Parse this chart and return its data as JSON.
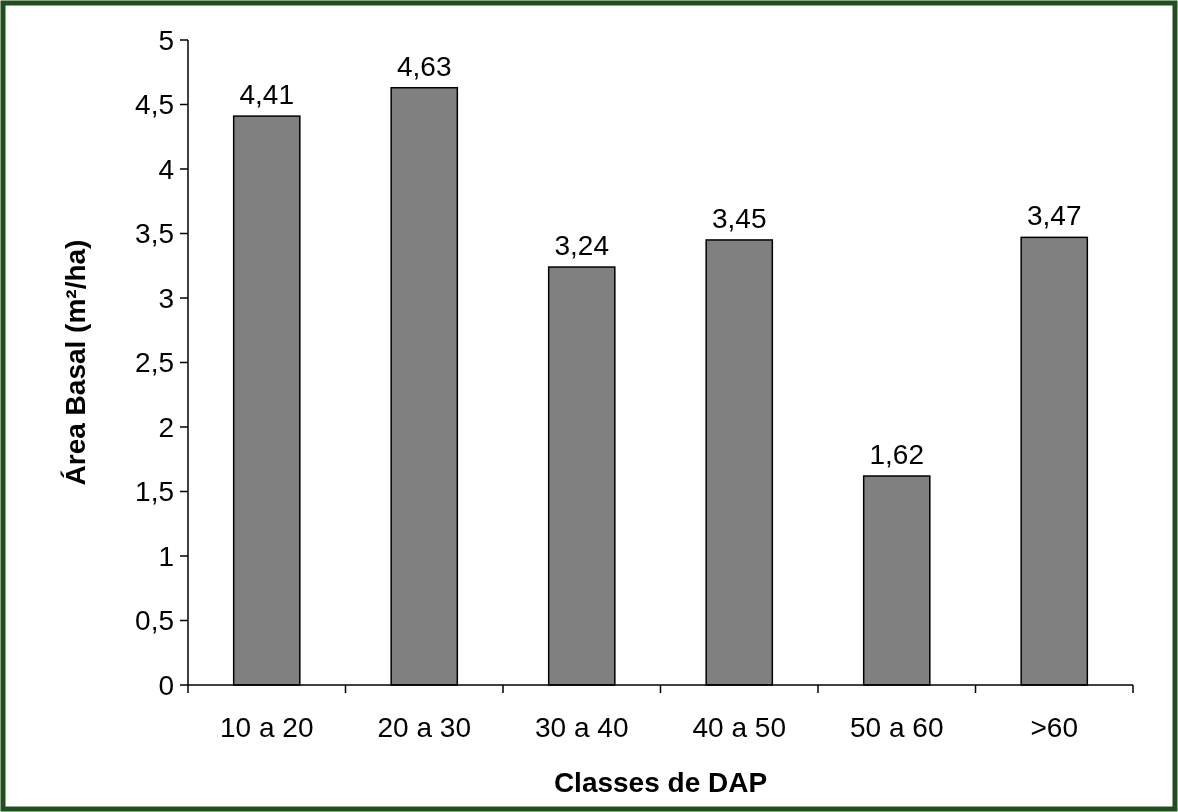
{
  "chart_data": {
    "type": "bar",
    "xlabel": "Classes de DAP",
    "ylabel": "Área Basal (m²/ha)",
    "categories": [
      "10 a 20",
      "20 a 30",
      "30 a 40",
      "40 a 50",
      "50 a 60",
      ">60"
    ],
    "values": [
      4.41,
      4.63,
      3.24,
      3.45,
      1.62,
      3.47
    ],
    "value_labels": [
      "4,41",
      "4,63",
      "3,24",
      "3,45",
      "1,62",
      "3,47"
    ],
    "color": "#808080",
    "ylim": [
      0,
      5
    ],
    "yticks": [
      0,
      {
        "value": 0.5,
        "label": "0,5"
      },
      1,
      {
        "value": 1.5,
        "label": "1,5"
      },
      2,
      {
        "value": 2.5,
        "label": "2,5"
      },
      3,
      {
        "value": 3.5,
        "label": "3,5"
      },
      4,
      {
        "value": 4.5,
        "label": "4,5"
      },
      5
    ],
    "grid": false
  }
}
